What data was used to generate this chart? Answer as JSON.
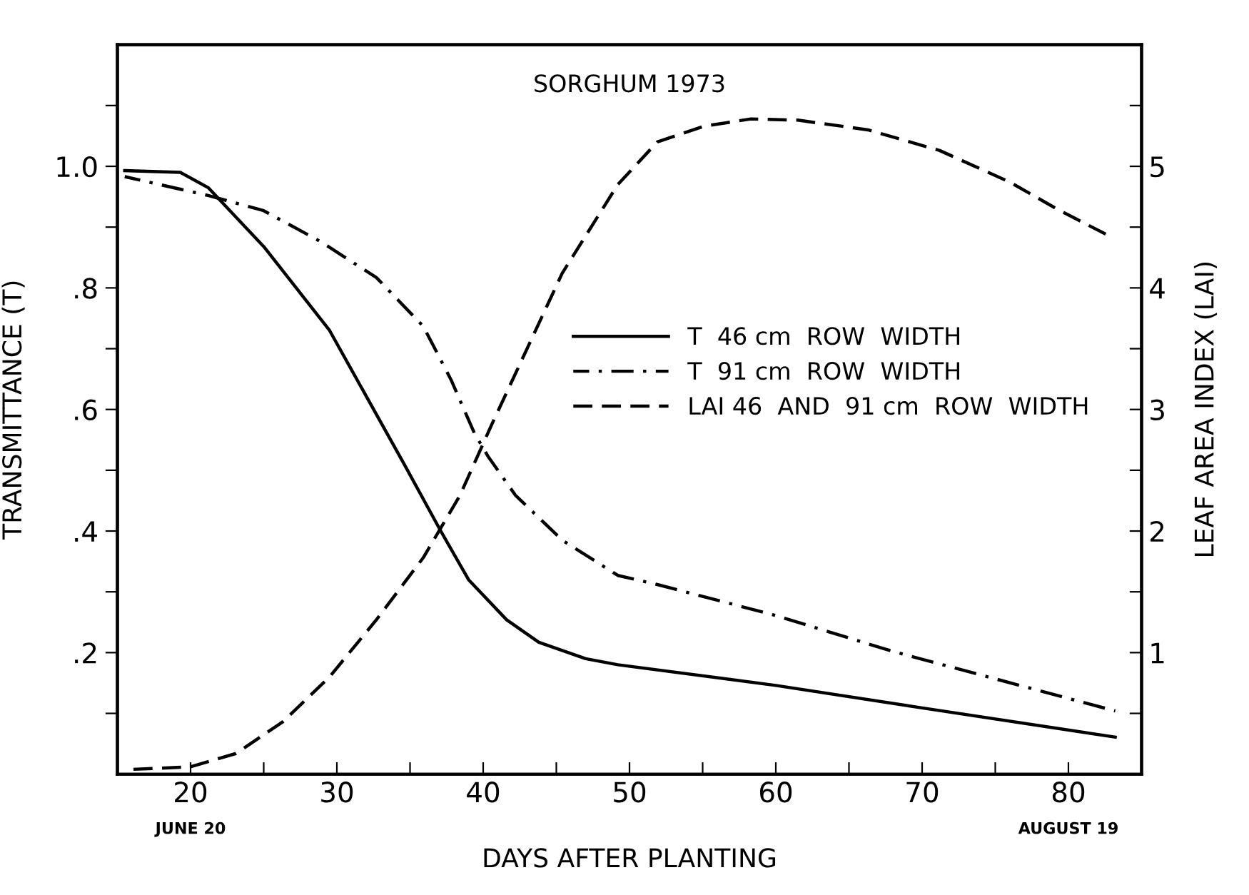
{
  "chart_data": {
    "type": "line",
    "title": "SORGHUM 1973",
    "xlabel": "DAYS AFTER PLANTING",
    "ylabel": "TRANSMITTANCE (T)",
    "y2label": "LEAF AREA INDEX (LAI)",
    "xlim": [
      15,
      85
    ],
    "xticks": [
      {
        "value": 20,
        "label": "20"
      },
      {
        "value": 25,
        "label": null
      },
      {
        "value": 30,
        "label": "30"
      },
      {
        "value": 35,
        "label": null
      },
      {
        "value": 40,
        "label": "40"
      },
      {
        "value": 45,
        "label": null
      },
      {
        "value": 50,
        "label": "50"
      },
      {
        "value": 55,
        "label": null
      },
      {
        "value": 60,
        "label": "60"
      },
      {
        "value": 65,
        "label": null
      },
      {
        "value": 70,
        "label": "70"
      },
      {
        "value": 75,
        "label": null
      },
      {
        "value": 80,
        "label": "80"
      }
    ],
    "ylim": [
      0,
      1.2
    ],
    "yticks": [
      {
        "value": 0.1,
        "label": null
      },
      {
        "value": 0.2,
        "label": ".2"
      },
      {
        "value": 0.3,
        "label": null
      },
      {
        "value": 0.4,
        "label": ".4"
      },
      {
        "value": 0.5,
        "label": null
      },
      {
        "value": 0.6,
        "label": ".6"
      },
      {
        "value": 0.7,
        "label": null
      },
      {
        "value": 0.8,
        "label": ".8"
      },
      {
        "value": 0.9,
        "label": null
      },
      {
        "value": 1.0,
        "label": "1.0"
      },
      {
        "value": 1.1,
        "label": null
      }
    ],
    "y2lim": [
      0,
      6
    ],
    "y2ticks": [
      {
        "value": 0.5,
        "label": null
      },
      1,
      {
        "value": 1.5,
        "label": null
      },
      2,
      {
        "value": 2.5,
        "label": null
      },
      3,
      {
        "value": 3.5,
        "label": null
      },
      4,
      {
        "value": 4.5,
        "label": null
      },
      5,
      {
        "value": 5.5,
        "label": null
      }
    ],
    "grid": false,
    "legend": "center right",
    "marker": "none",
    "annotations": [
      "JUNE 20",
      "AUGUST 19"
    ],
    "series": [
      {
        "name": "T  46 cm  ROW  WIDTH",
        "color": "#000000",
        "line_style": "solid",
        "x": [
          15.5,
          19.3,
          21.2,
          25,
          29.5,
          34.6,
          37.1,
          39,
          41.6,
          43.8,
          47,
          49.2,
          60,
          70,
          83.2
        ],
        "values": [
          0.993,
          0.99,
          0.965,
          0.868,
          0.73,
          0.51,
          0.4,
          0.32,
          0.254,
          0.217,
          0.19,
          0.18,
          0.146,
          0.109,
          0.061
        ]
      },
      {
        "name": "T  91 cm  ROW  WIDTH",
        "color": "#000000",
        "line_style": "dashdot",
        "x": [
          15.5,
          21.2,
          25,
          28.9,
          32.7,
          35.9,
          37.8,
          39.4,
          40.3,
          42.2,
          45.4,
          49.2,
          51.9,
          60,
          68,
          83.2
        ],
        "values": [
          0.983,
          0.952,
          0.927,
          0.876,
          0.817,
          0.737,
          0.649,
          0.561,
          0.524,
          0.459,
          0.385,
          0.327,
          0.312,
          0.261,
          0.202,
          0.104
        ]
      },
      {
        "name": "LAI 46  AND  91 cm  ROW  WIDTH",
        "color": "#000000",
        "line_style": "dashed",
        "axis": "y2",
        "x": [
          16.1,
          20,
          23.1,
          26.3,
          29.5,
          32.7,
          35.9,
          38.4,
          40.6,
          45.4,
          49.2,
          51.9,
          55.1,
          58.3,
          61.5,
          66.3,
          71.2,
          76,
          79.2,
          82.9
        ],
        "values": [
          0.04,
          0.06,
          0.17,
          0.43,
          0.8,
          1.27,
          1.78,
          2.29,
          2.88,
          4.12,
          4.85,
          5.2,
          5.33,
          5.39,
          5.38,
          5.3,
          5.13,
          4.87,
          4.65,
          4.42
        ]
      }
    ]
  }
}
